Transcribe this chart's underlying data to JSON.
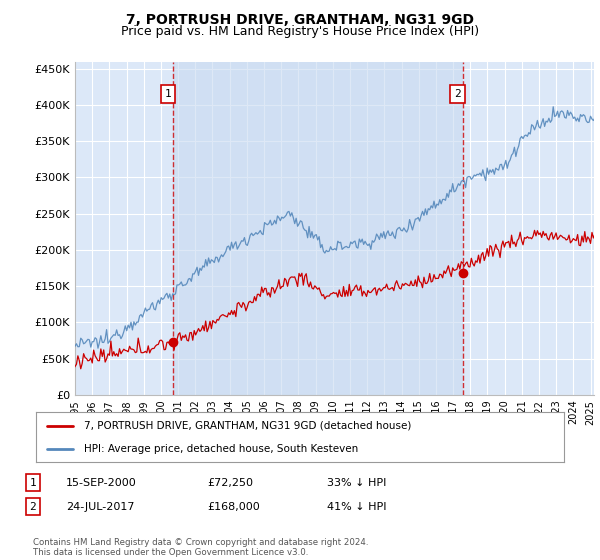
{
  "title": "7, PORTRUSH DRIVE, GRANTHAM, NG31 9GD",
  "subtitle": "Price paid vs. HM Land Registry's House Price Index (HPI)",
  "ylabel_ticks": [
    "£0",
    "£50K",
    "£100K",
    "£150K",
    "£200K",
    "£250K",
    "£300K",
    "£350K",
    "£400K",
    "£450K"
  ],
  "ytick_values": [
    0,
    50000,
    100000,
    150000,
    200000,
    250000,
    300000,
    350000,
    400000,
    450000
  ],
  "ylim": [
    0,
    460000
  ],
  "xlim_start": 1995.0,
  "xlim_end": 2025.2,
  "purchase1": {
    "date_num": 2000.71,
    "price": 72250,
    "label": "1"
  },
  "purchase2": {
    "date_num": 2017.56,
    "price": 168000,
    "label": "2"
  },
  "legend_label_red": "7, PORTRUSH DRIVE, GRANTHAM, NG31 9GD (detached house)",
  "legend_label_blue": "HPI: Average price, detached house, South Kesteven",
  "annotation1_date": "15-SEP-2000",
  "annotation1_price": "£72,250",
  "annotation1_hpi": "33% ↓ HPI",
  "annotation2_date": "24-JUL-2017",
  "annotation2_price": "£168,000",
  "annotation2_hpi": "41% ↓ HPI",
  "footer": "Contains HM Land Registry data © Crown copyright and database right 2024.\nThis data is licensed under the Open Government Licence v3.0.",
  "background_color": "#ffffff",
  "plot_bg_color": "#dce8f8",
  "highlight_color": "#dce8f8",
  "grid_color": "#ffffff",
  "red_color": "#cc0000",
  "blue_color": "#5588bb",
  "dashed_color": "#cc0000",
  "title_fontsize": 10,
  "subtitle_fontsize": 9
}
